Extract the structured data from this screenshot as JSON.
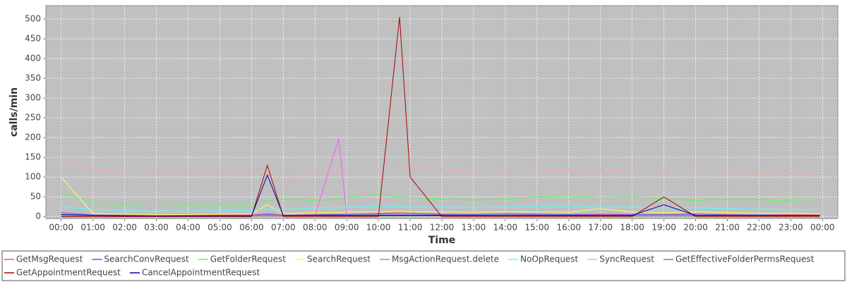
{
  "chart_data": {
    "type": "line",
    "x_label": "Time",
    "y_label": "calls/min",
    "x": [
      "00:00",
      "01:00",
      "02:00",
      "03:00",
      "04:00",
      "05:00",
      "06:00",
      "06:30",
      "07:00",
      "08:00",
      "08:45",
      "09:00",
      "10:00",
      "10:40",
      "11:00",
      "12:00",
      "13:00",
      "14:00",
      "15:00",
      "16:00",
      "17:00",
      "18:00",
      "19:00",
      "20:00",
      "21:00",
      "22:00",
      "23:00",
      "23:55"
    ],
    "xlim": [
      "-00:29",
      "24:29"
    ],
    "xticks": [
      "00:00",
      "01:00",
      "02:00",
      "03:00",
      "04:00",
      "05:00",
      "06:00",
      "07:00",
      "08:00",
      "09:00",
      "10:00",
      "11:00",
      "12:00",
      "13:00",
      "14:00",
      "15:00",
      "16:00",
      "17:00",
      "18:00",
      "19:00",
      "20:00",
      "21:00",
      "22:00",
      "23:00",
      {
        "value": "24:00",
        "label": "00:00"
      }
    ],
    "ylim": [
      -5,
      534
    ],
    "yticks": [
      0,
      50,
      100,
      150,
      200,
      250,
      300,
      350,
      400,
      450,
      500
    ],
    "grid": true,
    "legend": "bottom",
    "series": [
      {
        "name": "GetMsgRequest",
        "color": "#ff5555",
        "values": [
          5,
          3,
          4,
          2,
          3,
          4,
          4,
          8,
          3,
          5,
          6,
          5,
          8,
          10,
          9,
          6,
          5,
          7,
          6,
          5,
          6,
          5,
          4,
          6,
          5,
          4,
          5,
          4
        ]
      },
      {
        "name": "SearchConvRequest",
        "color": "#5555ff",
        "values": [
          10,
          4,
          3,
          2,
          2,
          3,
          3,
          5,
          3,
          4,
          5,
          5,
          6,
          6,
          6,
          5,
          5,
          6,
          5,
          5,
          4,
          5,
          5,
          6,
          4,
          4,
          3,
          3
        ]
      },
      {
        "name": "GetFolderRequest",
        "color": "#55ff55",
        "values": [
          60,
          35,
          30,
          28,
          30,
          32,
          30,
          40,
          45,
          40,
          45,
          50,
          55,
          50,
          48,
          45,
          42,
          45,
          50,
          52,
          48,
          50,
          45,
          40,
          45,
          42,
          40,
          38
        ]
      },
      {
        "name": "SearchRequest",
        "color": "#ffff55",
        "values": [
          100,
          8,
          6,
          5,
          5,
          6,
          7,
          30,
          8,
          10,
          10,
          12,
          12,
          14,
          12,
          12,
          11,
          12,
          12,
          11,
          20,
          12,
          10,
          12,
          10,
          9,
          8,
          8
        ]
      },
      {
        "name": "MsgActionRequest.delete",
        "color": "#ff55ff",
        "values": [
          3,
          2,
          2,
          2,
          2,
          2,
          2,
          3,
          2,
          3,
          197,
          3,
          3,
          3,
          3,
          3,
          3,
          3,
          3,
          3,
          3,
          3,
          3,
          3,
          3,
          3,
          3,
          3
        ]
      },
      {
        "name": "NoOpRequest",
        "color": "#55ffff",
        "values": [
          25,
          18,
          15,
          14,
          14,
          15,
          16,
          20,
          18,
          22,
          22,
          24,
          25,
          25,
          24,
          24,
          23,
          24,
          26,
          25,
          24,
          24,
          22,
          22,
          20,
          19,
          18,
          18
        ]
      },
      {
        "name": "SyncRequest",
        "color": "#ffaaaa",
        "values": [
          140,
          118,
          115,
          112,
          113,
          110,
          112,
          115,
          90,
          118,
          118,
          120,
          118,
          120,
          122,
          118,
          115,
          112,
          115,
          118,
          118,
          115,
          112,
          115,
          113,
          112,
          110,
          105
        ]
      },
      {
        "name": "GetEffectiveFolderPermsRequest",
        "color": "#808080",
        "values": [
          1,
          1,
          1,
          1,
          1,
          1,
          1,
          1,
          1,
          1,
          1,
          1,
          1,
          1,
          1,
          1,
          1,
          1,
          1,
          1,
          1,
          1,
          1,
          1,
          1,
          1,
          1,
          1
        ]
      },
      {
        "name": "GetAppointmentRequest",
        "color": "#aa0000",
        "values": [
          0,
          0,
          0,
          0,
          0,
          0,
          0,
          130,
          0,
          0,
          0,
          0,
          0,
          505,
          100,
          0,
          0,
          0,
          0,
          0,
          0,
          0,
          50,
          0,
          0,
          0,
          0,
          0
        ]
      },
      {
        "name": "CancelAppointmentRequest",
        "color": "#0000aa",
        "values": [
          5,
          3,
          2,
          2,
          2,
          2,
          2,
          105,
          3,
          3,
          3,
          3,
          3,
          3,
          3,
          3,
          3,
          3,
          3,
          3,
          3,
          3,
          30,
          3,
          3,
          3,
          3,
          3
        ]
      }
    ]
  }
}
